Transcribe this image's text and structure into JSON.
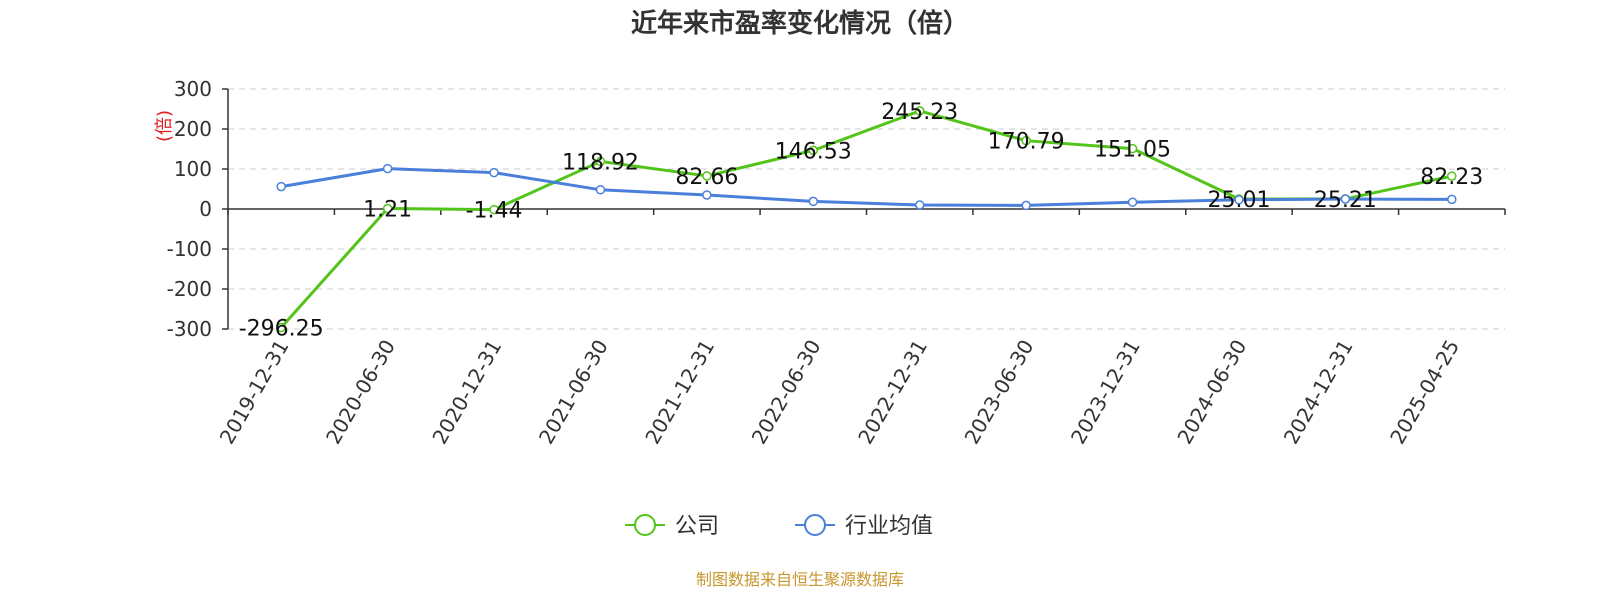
{
  "chart_data": {
    "type": "line",
    "title": "近年来市盈率变化情况（倍）",
    "ylabel": "(倍)",
    "xlabel": "",
    "categories": [
      "2019-12-31",
      "2020-06-30",
      "2020-12-31",
      "2021-06-30",
      "2021-12-31",
      "2022-06-30",
      "2022-12-31",
      "2023-06-30",
      "2023-12-31",
      "2024-06-30",
      "2024-12-31",
      "2025-04-25"
    ],
    "ylim": [
      -300,
      300
    ],
    "yticks": [
      300,
      200,
      100,
      0,
      -100,
      -200,
      -300
    ],
    "grid": true,
    "legend_position": "bottom",
    "series": [
      {
        "name": "公司",
        "color": "#52c41a",
        "values": [
          -296.25,
          1.21,
          -1.44,
          118.92,
          82.66,
          146.53,
          245.23,
          170.79,
          151.05,
          25.01,
          25.21,
          82.23
        ],
        "labels": [
          "-296.25",
          "1.21",
          "-1.44",
          "118.92",
          "82.66",
          "146.53",
          "245.23",
          "170.79",
          "151.05",
          "25.01",
          "25.21",
          "82.23"
        ]
      },
      {
        "name": "行业均值",
        "color": "#4a7fdc",
        "values": [
          56,
          101,
          91,
          48,
          35,
          19,
          10,
          9,
          17,
          23,
          25,
          24
        ]
      }
    ]
  },
  "source": "制图数据来自恒生聚源数据库"
}
